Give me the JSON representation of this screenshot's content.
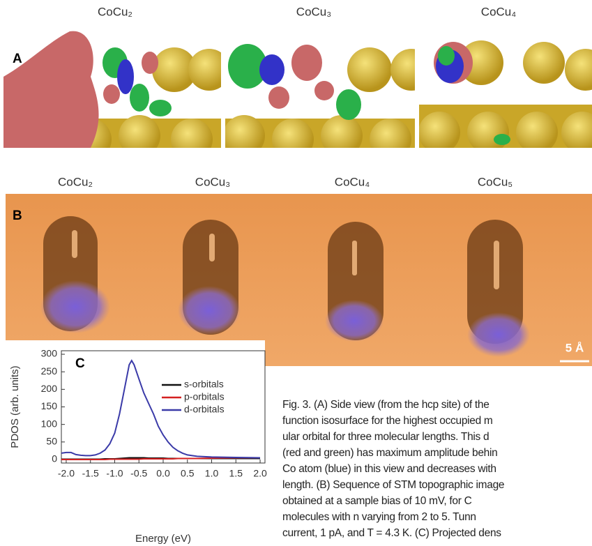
{
  "panel_a": {
    "label": "A",
    "titles": [
      "CoCu₂",
      "CoCu₃",
      "CoCu₄"
    ]
  },
  "panel_b": {
    "label": "B",
    "titles": [
      "CoCu₂",
      "CoCu₃",
      "CoCu₄",
      "CoCu₅"
    ],
    "scale_bar": "5 Å"
  },
  "chart_data": {
    "type": "line",
    "panel_label": "C",
    "x_label": "Energy (eV)",
    "y_label": "PDOS (arb. units)",
    "x": [
      -2.1,
      -2.0,
      -1.9,
      -1.8,
      -1.7,
      -1.6,
      -1.5,
      -1.4,
      -1.3,
      -1.2,
      -1.1,
      -1.0,
      -0.9,
      -0.8,
      -0.7,
      -0.65,
      -0.6,
      -0.5,
      -0.4,
      -0.3,
      -0.2,
      -0.1,
      0.0,
      0.1,
      0.2,
      0.3,
      0.4,
      0.5,
      0.7,
      1.0,
      1.5,
      2.0
    ],
    "series": [
      {
        "name": "s-orbitals",
        "color": "#111111",
        "values": [
          1,
          1,
          1,
          1,
          1,
          1,
          1,
          1,
          1,
          2,
          2,
          2,
          3,
          4,
          5,
          5,
          5,
          5,
          5,
          4,
          4,
          4,
          4,
          3,
          3,
          3,
          3,
          3,
          3,
          3,
          3,
          3
        ]
      },
      {
        "name": "p-orbitals",
        "color": "#d42020",
        "values": [
          0,
          0,
          0,
          0,
          0,
          0,
          0,
          0,
          0,
          0,
          1,
          1,
          1,
          1,
          1,
          1,
          1,
          1,
          2,
          2,
          2,
          2,
          2,
          2,
          2,
          3,
          3,
          3,
          3,
          4,
          5,
          5
        ]
      },
      {
        "name": "d-orbitals",
        "color": "#3a3aa8",
        "values": [
          18,
          20,
          20,
          14,
          12,
          11,
          11,
          13,
          18,
          27,
          45,
          75,
          130,
          200,
          270,
          282,
          270,
          230,
          190,
          160,
          130,
          95,
          70,
          50,
          35,
          25,
          18,
          13,
          9,
          7,
          6,
          5
        ]
      }
    ],
    "xlim": [
      -2.1,
      2.1
    ],
    "ylim": [
      -10,
      310
    ],
    "xticks": [
      {
        "value": -2.0,
        "label": "-2.0"
      },
      -1.5,
      {
        "value": -1.0,
        "label": "-1.0"
      },
      -0.5,
      {
        "value": 0.0,
        "label": "0.0"
      },
      0.5,
      {
        "value": 1.0,
        "label": "1.0"
      },
      1.5,
      {
        "value": 2.0,
        "label": "2.0"
      }
    ],
    "yticks": [
      0,
      50,
      100,
      150,
      200,
      250,
      300
    ],
    "legend": "upper right"
  },
  "caption": {
    "lines": [
      "Fig. 3. (A) Side view (from the hcp site) of the",
      "function isosurface for the highest occupied m",
      "ular orbital for three molecular lengths. This d",
      "(red and green) has maximum amplitude behin",
      "Co atom (blue) in this view and decreases with",
      "length. (B) Sequence of STM topographic image",
      "obtained at a sample bias of 10 mV, for C",
      "molecules with n varying from 2 to 5. Tunn",
      "current, 1 pA, and T = 4.3 K. (C) Projected dens"
    ]
  }
}
